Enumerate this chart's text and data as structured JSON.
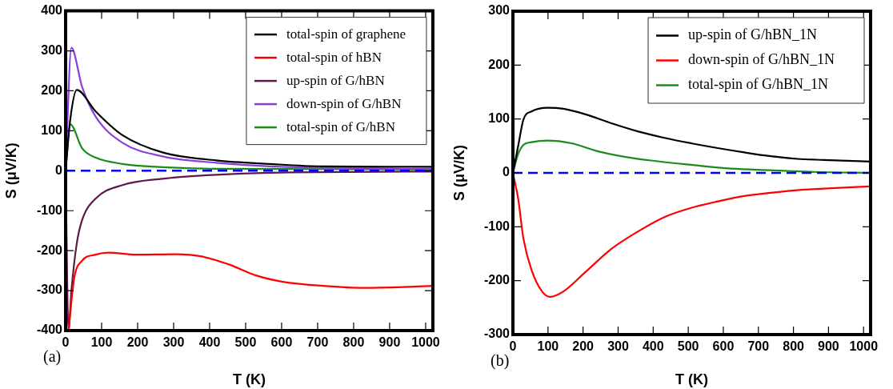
{
  "chart_data": [
    {
      "type": "line",
      "xlabel": "T (K)",
      "ylabel": "S (μV/K)",
      "xlim": [
        0,
        1020
      ],
      "ylim": [
        -400,
        400
      ],
      "xticks": [
        0,
        100,
        200,
        300,
        400,
        500,
        600,
        700,
        800,
        900,
        1000
      ],
      "yticks": [
        -400,
        -300,
        -200,
        -100,
        0,
        100,
        200,
        300,
        400
      ],
      "legend": "top right",
      "annotations": [
        "(a)"
      ],
      "ref_lines": [
        {
          "axis": "y",
          "value": 0,
          "color": "#0000ff",
          "line_style": "dashed"
        }
      ],
      "series": [
        {
          "name": "total-spin of graphene",
          "color": "#000000",
          "x": [
            0,
            13,
            31,
            83,
            158,
            269,
            418,
            567,
            715,
            1020
          ],
          "values": [
            0,
            129,
            202,
            149,
            89,
            46,
            26,
            17,
            11,
            10
          ]
        },
        {
          "name": "total-spin of hBN",
          "color": "#ff0000",
          "x": [
            8,
            24,
            46,
            83,
            120,
            195,
            306,
            381,
            455,
            529,
            604,
            715,
            827,
            938,
            1020
          ],
          "values": [
            -400,
            -268,
            -225,
            -210,
            -205,
            -210,
            -209,
            -215,
            -235,
            -262,
            -278,
            -288,
            -293,
            -291,
            -288
          ]
        },
        {
          "name": "up-spin of G/hBN",
          "color": "#5a1a4a",
          "x": [
            0,
            8,
            16,
            31,
            46,
            83,
            158,
            269,
            418,
            567,
            1020
          ],
          "values": [
            0,
            -400,
            -301,
            -182,
            -123,
            -70,
            -36,
            -20,
            -10,
            -5,
            -2
          ]
        },
        {
          "name": "down-spin of G/hBN",
          "color": "#8a3fd8",
          "x": [
            0,
            16,
            46,
            83,
            158,
            269,
            418,
            567,
            715,
            1020
          ],
          "values": [
            0,
            308,
            209,
            136,
            70,
            36,
            20,
            11,
            8,
            5
          ]
        },
        {
          "name": "total-spin of G/hBN",
          "color": "#1a8c1a",
          "x": [
            0,
            13,
            46,
            83,
            158,
            269,
            418,
            1020
          ],
          "values": [
            0,
            116,
            56,
            33,
            17,
            9,
            5,
            3
          ]
        }
      ]
    },
    {
      "type": "line",
      "xlabel": "T (K)",
      "ylabel": "S (μV/K)",
      "xlim": [
        0,
        1020
      ],
      "ylim": [
        -300,
        300
      ],
      "xticks": [
        0,
        100,
        200,
        300,
        400,
        500,
        600,
        700,
        800,
        900,
        1000
      ],
      "yticks": [
        -300,
        -200,
        -100,
        0,
        100,
        200,
        300
      ],
      "legend": "top right",
      "annotations": [
        "(b)"
      ],
      "ref_lines": [
        {
          "axis": "y",
          "value": 0,
          "color": "#0000ff",
          "line_style": "dashed"
        }
      ],
      "series": [
        {
          "name": "up-spin of G/hBN_1N",
          "color": "#000000",
          "x": [
            0,
            15,
            30,
            53,
            99,
            144,
            205,
            281,
            356,
            432,
            508,
            584,
            660,
            735,
            811,
            887,
            1020
          ],
          "values": [
            0,
            50,
            99,
            114,
            121,
            119,
            109,
            92,
            77,
            65,
            55,
            46,
            38,
            31,
            26,
            24,
            21
          ]
        },
        {
          "name": "down-spin of G/hBN_1N",
          "color": "#ff0000",
          "x": [
            0,
            15,
            30,
            53,
            83,
            106,
            144,
            205,
            281,
            356,
            432,
            508,
            584,
            660,
            735,
            811,
            887,
            1020
          ],
          "values": [
            0,
            -48,
            -122,
            -180,
            -220,
            -230,
            -220,
            -185,
            -141,
            -109,
            -82,
            -65,
            -53,
            -43,
            -37,
            -32,
            -29,
            -25
          ]
        },
        {
          "name": "total-spin of G/hBN_1N",
          "color": "#1a8c1a",
          "x": [
            0,
            15,
            30,
            53,
            99,
            167,
            243,
            318,
            394,
            508,
            622,
            735,
            849,
            1020
          ],
          "values": [
            0,
            35,
            52,
            57,
            60,
            55,
            40,
            30,
            23,
            15,
            8,
            5,
            2,
            0
          ]
        }
      ]
    }
  ]
}
